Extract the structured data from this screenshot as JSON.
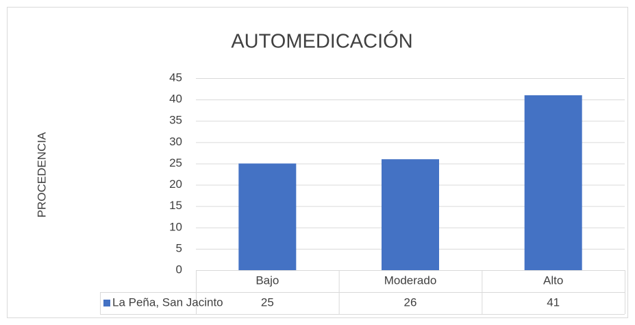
{
  "chart_data": {
    "type": "bar",
    "title": "AUTOMEDICACIÓN",
    "y_label": "PROCEDENCIA",
    "categories": [
      "Bajo",
      "Moderado",
      "Alto"
    ],
    "series": [
      {
        "name": "La Peña, San Jacinto",
        "color": "#4472c4",
        "values": [
          25,
          26,
          41
        ]
      }
    ],
    "ylim": [
      0,
      45
    ],
    "yticks": [
      0,
      5,
      10,
      15,
      20,
      25,
      30,
      35,
      40,
      45
    ],
    "grid": true,
    "data_table": true
  }
}
